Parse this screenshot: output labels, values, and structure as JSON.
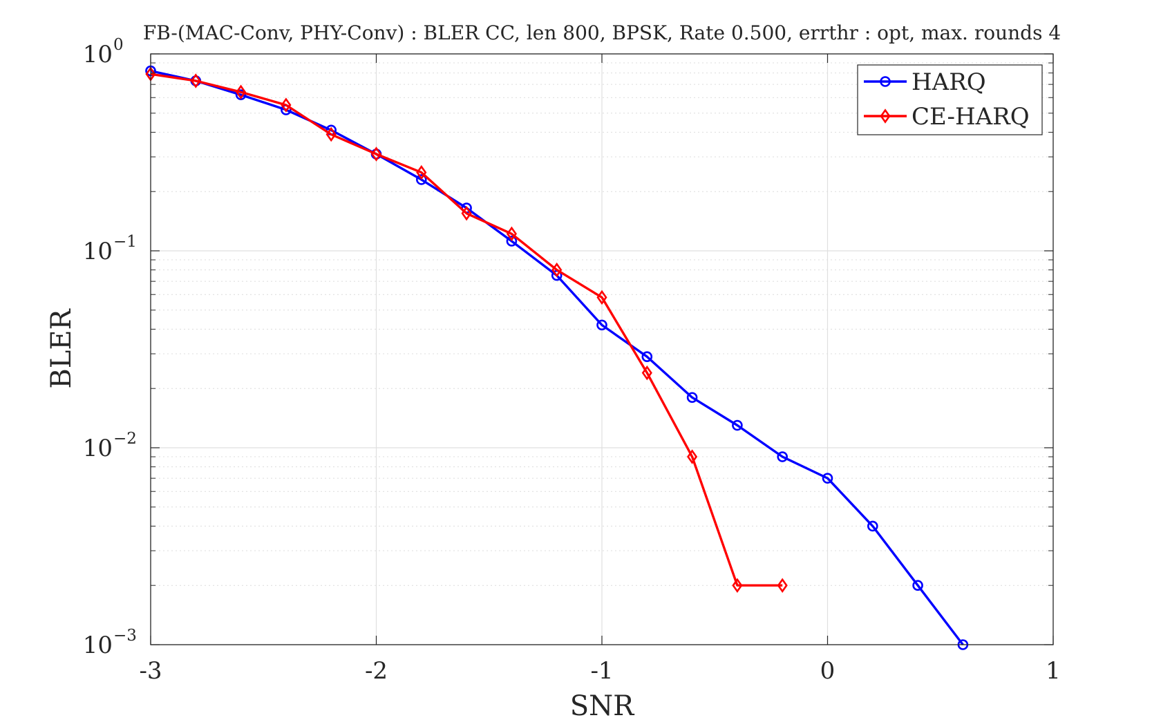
{
  "chart_data": {
    "type": "line",
    "title": "FB-(MAC-Conv, PHY-Conv) : BLER CC, len 800, BPSK, Rate 0.500, errthr : opt, max. rounds 4",
    "xlabel": "SNR",
    "ylabel": "BLER",
    "xlim": [
      -3,
      1
    ],
    "ylim": [
      0.001,
      1
    ],
    "yscale": "log",
    "grid": true,
    "minor_grid": true,
    "legend_position": "top-right",
    "x_ticks": [
      -3,
      -2,
      -1,
      0,
      1
    ],
    "x_tick_labels": [
      "-3",
      "-2",
      "-1",
      "0",
      "1"
    ],
    "y_ticks": [
      1,
      0.1,
      0.01,
      0.001
    ],
    "y_tick_labels": [
      {
        "base": "10",
        "exp": "0"
      },
      {
        "base": "10",
        "exp": "−1"
      },
      {
        "base": "10",
        "exp": "−2"
      },
      {
        "base": "10",
        "exp": "−3"
      }
    ],
    "series": [
      {
        "name": "HARQ",
        "color": "#0000ff",
        "marker": "circle",
        "x": [
          -3,
          -2.8,
          -2.6,
          -2.4,
          -2.2,
          -2.0,
          -1.8,
          -1.6,
          -1.4,
          -1.2,
          -1.0,
          -0.8,
          -0.6,
          -0.4,
          -0.2,
          0.0,
          0.2,
          0.4,
          0.6
        ],
        "y": [
          0.82,
          0.73,
          0.62,
          0.52,
          0.41,
          0.31,
          0.23,
          0.165,
          0.112,
          0.075,
          0.042,
          0.029,
          0.018,
          0.013,
          0.009,
          0.007,
          0.004,
          0.002,
          0.001
        ]
      },
      {
        "name": "CE-HARQ",
        "color": "#ff0000",
        "marker": "diamond",
        "x": [
          -3,
          -2.8,
          -2.6,
          -2.4,
          -2.2,
          -2.0,
          -1.8,
          -1.6,
          -1.4,
          -1.2,
          -1.0,
          -0.8,
          -0.6,
          -0.4,
          -0.2
        ],
        "y": [
          0.79,
          0.73,
          0.64,
          0.55,
          0.39,
          0.31,
          0.25,
          0.155,
          0.122,
          0.08,
          0.058,
          0.024,
          0.009,
          0.002,
          0.002
        ]
      }
    ]
  }
}
